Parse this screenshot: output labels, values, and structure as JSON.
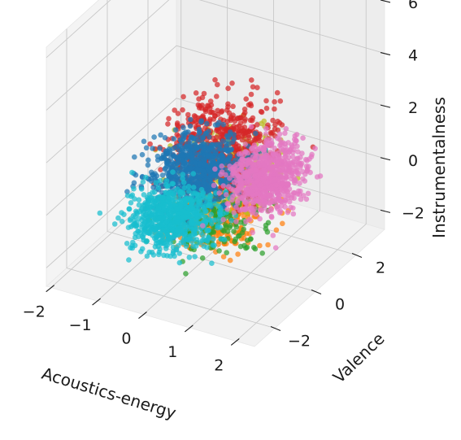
{
  "chart_data": {
    "type": "scatter",
    "projection": "3d",
    "xlabel": "Acoustics-energy",
    "ylabel": "Valence",
    "zlabel": "Instrumentalness",
    "x_ticks": [
      "−2",
      "−1",
      "0",
      "1",
      "2"
    ],
    "y_ticks": [
      "−2",
      "0",
      "2"
    ],
    "z_ticks": [
      "−2",
      "0",
      "2",
      "4",
      "6"
    ],
    "xlim": [
      -2.1,
      2.4
    ],
    "ylim": [
      -3.0,
      3.4
    ],
    "zlim": [
      -2.7,
      6.4
    ],
    "grid": true,
    "legend": false,
    "series": [
      {
        "color": "#ff7f0e",
        "cluster": {
          "x": [
            -1.6,
            2.2
          ],
          "y": [
            -2.9,
            2.9
          ],
          "z": [
            -2.6,
            0.8
          ]
        },
        "count": 260
      },
      {
        "color": "#2ca02c",
        "cluster": {
          "x": [
            -1.6,
            2.2
          ],
          "y": [
            -2.9,
            2.7
          ],
          "z": [
            -2.6,
            0.5
          ]
        },
        "count": 170
      },
      {
        "color": "#bcbd22",
        "cluster": {
          "x": [
            -1.5,
            2.2
          ],
          "y": [
            -2.5,
            3.1
          ],
          "z": [
            -1.5,
            3.0
          ]
        },
        "count": 260
      },
      {
        "color": "#d62728",
        "cluster": {
          "x": [
            -1.7,
            2.2
          ],
          "y": [
            -2.5,
            3.0
          ],
          "z": [
            -1.2,
            4.6
          ]
        },
        "count": 560
      },
      {
        "color": "#1f77b4",
        "cluster": {
          "x": [
            -1.9,
            1.4
          ],
          "y": [
            -2.4,
            2.9
          ],
          "z": [
            -1.8,
            2.6
          ]
        },
        "count": 750
      },
      {
        "color": "#17becf",
        "cluster": {
          "x": [
            -2.0,
            1.2
          ],
          "y": [
            -2.8,
            1.6
          ],
          "z": [
            -2.4,
            0.6
          ]
        },
        "count": 700
      },
      {
        "color": "#e377c2",
        "cluster": {
          "x": [
            -0.2,
            2.3
          ],
          "y": [
            -1.6,
            3.0
          ],
          "z": [
            -1.5,
            2.4
          ]
        },
        "count": 750
      }
    ]
  }
}
